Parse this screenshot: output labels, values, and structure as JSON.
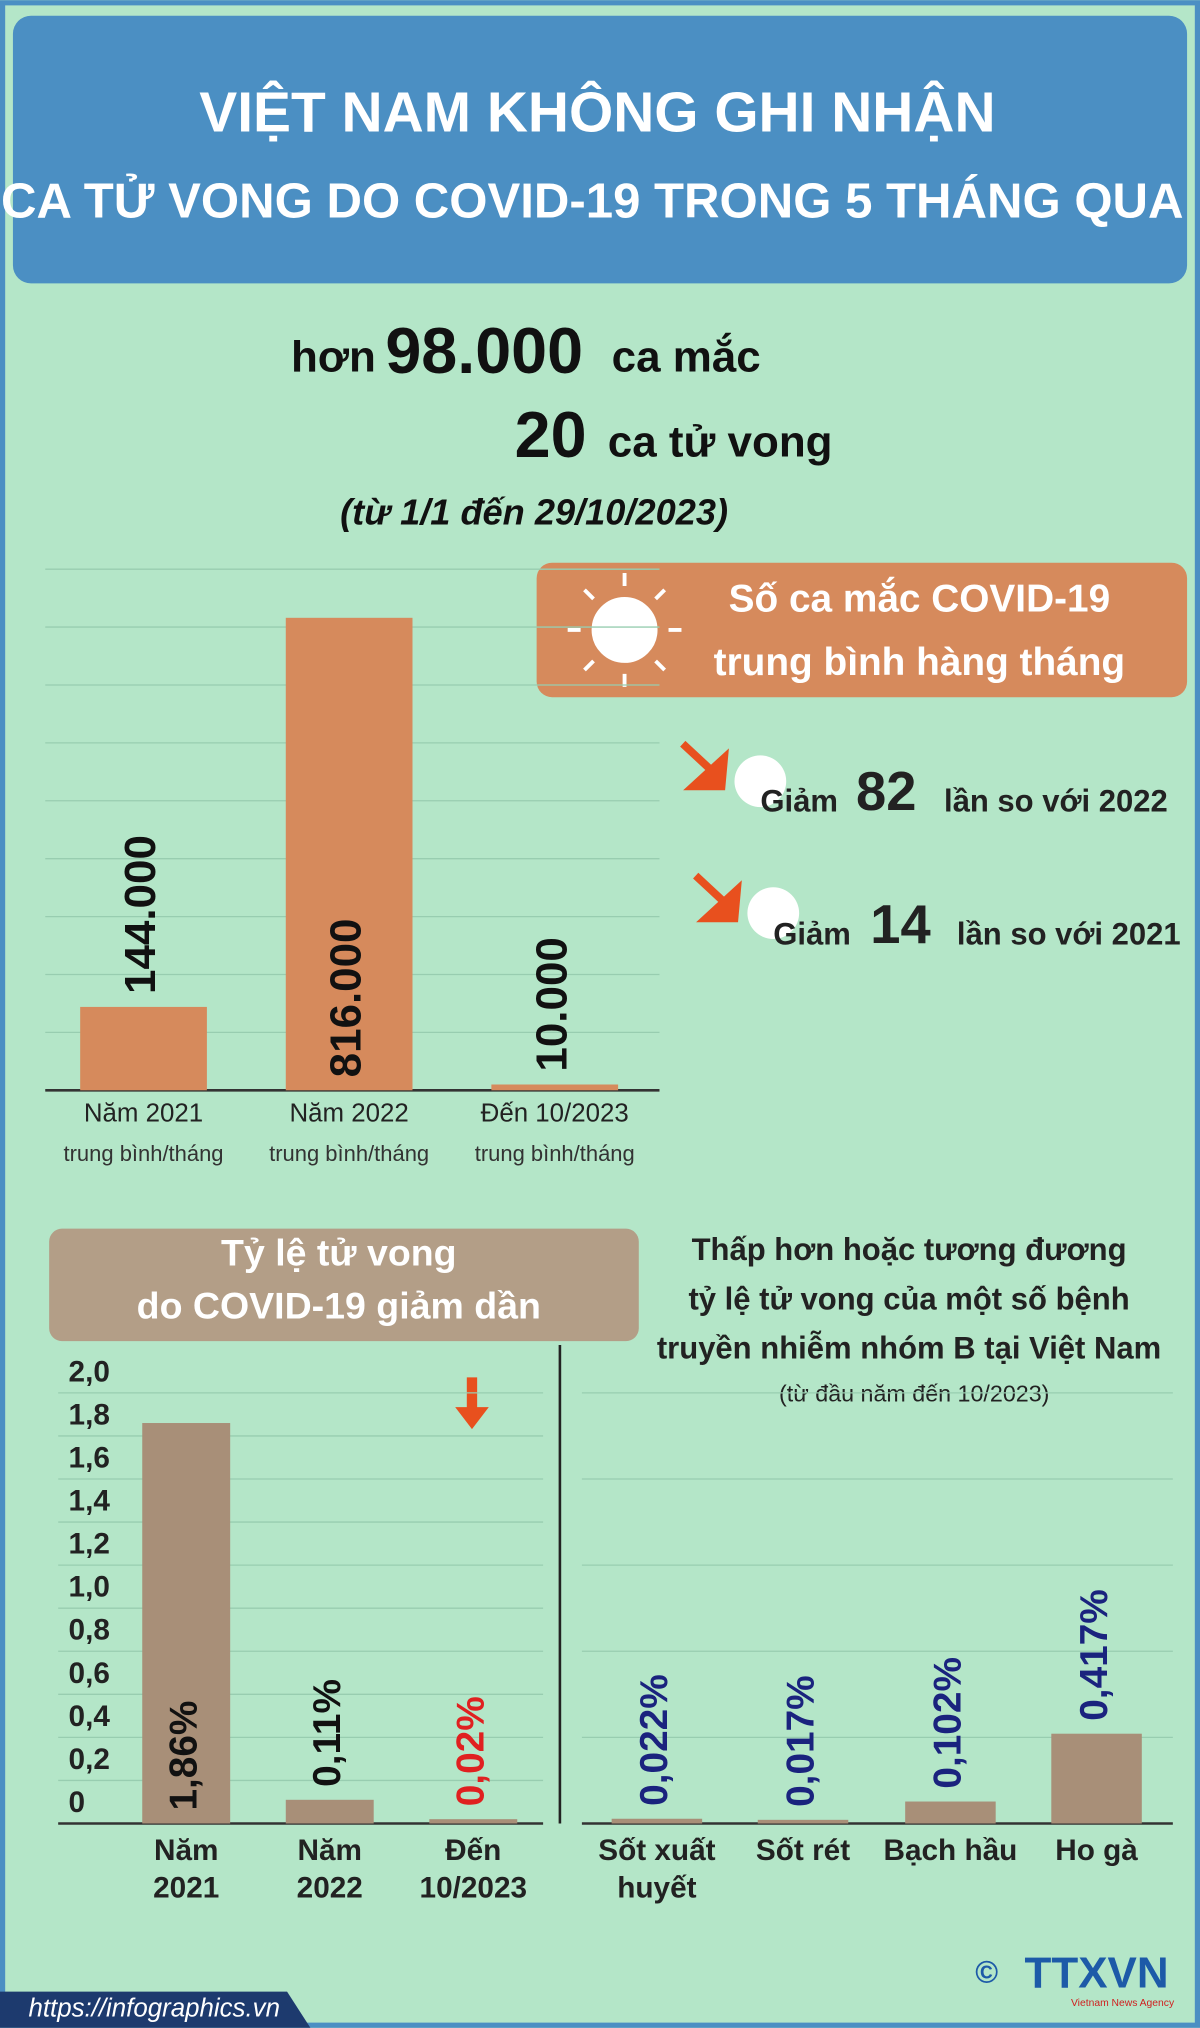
{
  "header": {
    "title_lines": [
      "VIỆT NAM KHÔNG GHI NHẬN",
      "CA TỬ  VONG DO COVID-19 TRONG 5 THÁNG QUA"
    ]
  },
  "summary": {
    "cases_prefix": "hơn",
    "cases": "98.000",
    "cases_suffix": "ca mắc",
    "deaths": "20",
    "deaths_suffix": "ca tử vong",
    "period": "(từ 1/1 đến 29/10/2023)"
  },
  "chart_data": [
    {
      "type": "bar",
      "categories": [
        "Năm 2021",
        "Năm 2022",
        "Đến 10/2023"
      ],
      "subcategories": [
        "trung bình/tháng",
        "trung bình/tháng",
        "trung bình/tháng"
      ],
      "values": [
        144000,
        816000,
        10000
      ],
      "value_labels": [
        "144.000",
        "816.000",
        "10.000"
      ],
      "color": "#d68a5c",
      "value_label_color": "#111111",
      "ylim": [
        0,
        900000
      ],
      "yticks": [
        0,
        100000,
        200000,
        300000,
        400000,
        500000,
        600000,
        700000,
        800000,
        900000
      ],
      "grid": true,
      "show_ytick_labels": false,
      "callout": {
        "title_lines": [
          "Số ca mắc COVID-19",
          "trung bình hàng tháng"
        ],
        "comparisons": [
          {
            "prefix": "Giảm",
            "factor": 82,
            "suffix": "lần so với 2022"
          },
          {
            "prefix": "Giảm",
            "factor": 14,
            "suffix": "lần so với 2021"
          }
        ]
      }
    },
    {
      "type": "bar",
      "title_lines": [
        "Tỷ lệ tử vong",
        "do COVID-19 giảm dần"
      ],
      "categories": [
        [
          "Năm",
          "2021"
        ],
        [
          "Năm",
          "2022"
        ],
        [
          "Đến",
          "10/2023"
        ]
      ],
      "values": [
        1.86,
        0.11,
        0.02
      ],
      "value_labels": [
        "1,86%",
        "0,11%",
        "0,02%"
      ],
      "color": "#a88f78",
      "value_label_color": [
        "#111111",
        "#111111",
        "#e02020"
      ],
      "ylim": [
        0,
        2
      ],
      "yticks": [
        0,
        {
          "value": 0.2,
          "label": "0,2"
        },
        {
          "value": 0.4,
          "label": "0,4"
        },
        {
          "value": 0.6,
          "label": "0,6"
        },
        {
          "value": 0.8,
          "label": "0,8"
        },
        {
          "value": 1.0,
          "label": "1,0"
        },
        {
          "value": 1.2,
          "label": "1,2"
        },
        {
          "value": 1.4,
          "label": "1,4"
        },
        {
          "value": 1.6,
          "label": "1,6"
        },
        {
          "value": 1.8,
          "label": "1,8"
        },
        {
          "value": 2.0,
          "label": "2,0"
        }
      ],
      "grid": true,
      "show_ytick_labels": true
    },
    {
      "type": "bar",
      "title_lines": [
        "Thấp hơn hoặc tương đương",
        "tỷ lệ tử vong của một số bệnh",
        "truyền nhiễm nhóm B tại Việt Nam"
      ],
      "subtitle": "(từ đầu năm đến 10/2023)",
      "categories": [
        [
          "Sốt xuất",
          "huyết"
        ],
        [
          "Sốt rét"
        ],
        [
          "Bạch hầu"
        ],
        [
          "Ho gà"
        ]
      ],
      "values": [
        0.022,
        0.017,
        0.102,
        0.417
      ],
      "value_labels": [
        "0,022%",
        "0,017%",
        "0,102%",
        "0,417%"
      ],
      "color": "#a88f78",
      "value_label_color": "#1a237e",
      "ylim": [
        0,
        2
      ],
      "yticks": [
        0.4,
        0.8,
        1.2,
        1.6,
        2.0
      ],
      "grid": true,
      "show_ytick_labels": false
    }
  ],
  "footer": {
    "url": "https://infographics.vn",
    "copyright": "©",
    "logo": "TTXVN",
    "agency": "Vietnam News Agency"
  }
}
